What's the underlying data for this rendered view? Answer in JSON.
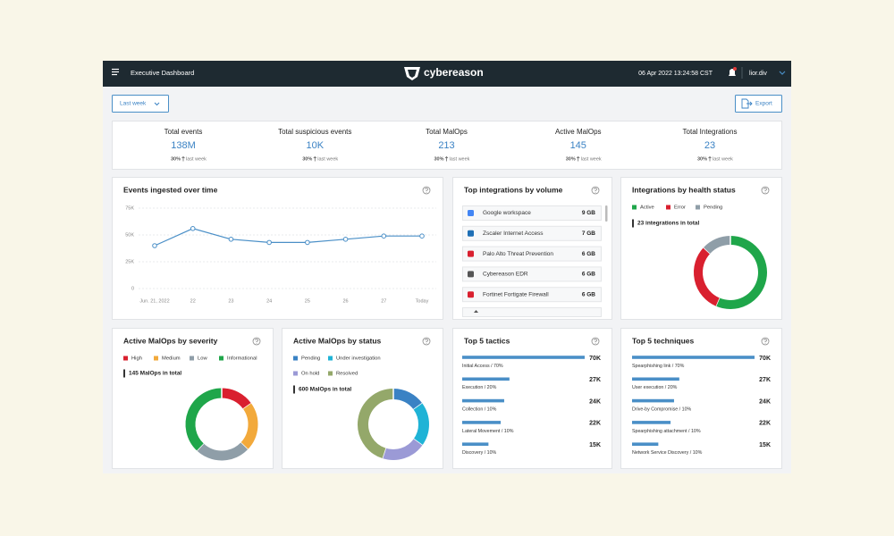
{
  "header": {
    "page_title": "Executive Dashboard",
    "logo": "cybereason",
    "datetime": "06 Apr 2022 13:24:58 CST",
    "user": "lior.div"
  },
  "toolbar": {
    "period": "Last week",
    "export": "Export"
  },
  "kpis": [
    {
      "label": "Total events",
      "value": "138M",
      "change": "30%",
      "change_label": "last week"
    },
    {
      "label": "Total suspicious events",
      "value": "10K",
      "change": "30%",
      "change_label": "last week"
    },
    {
      "label": "Total MalOps",
      "value": "213",
      "change": "30%",
      "change_label": "last week"
    },
    {
      "label": "Active MalOps",
      "value": "145",
      "change": "30%",
      "change_label": "last week"
    },
    {
      "label": "Total Integrations",
      "value": "23",
      "change": "30%",
      "change_label": "last week"
    }
  ],
  "widgets": {
    "events": {
      "title": "Events ingested over time",
      "chart": {
        "type": "line",
        "categories": [
          "Jun. 21, 2022",
          "22",
          "23",
          "24",
          "25",
          "26",
          "27",
          "Today"
        ],
        "values": [
          40000,
          56000,
          46000,
          43000,
          43000,
          46000,
          49000,
          49000
        ],
        "color": "#4a8fc7",
        "ylim": [
          0,
          75000
        ],
        "yticks": [
          0,
          {
            "value": 25000,
            "label": "25K"
          },
          {
            "value": 50000,
            "label": "50K"
          },
          {
            "value": 75000,
            "label": "75K"
          }
        ],
        "grid": true
      }
    },
    "integrations": {
      "title": "Top integrations by volume",
      "items": [
        {
          "name": "Google workspace",
          "volume": "9 GB"
        },
        {
          "name": "Zscaler Internet Access",
          "volume": "7 GB"
        },
        {
          "name": "Palo Alto Threat Prevention",
          "volume": "6 GB"
        },
        {
          "name": "Cybereason EDR",
          "volume": "6 GB"
        },
        {
          "name": "Fortinet Fortigate Firewall",
          "volume": "6 GB"
        }
      ]
    },
    "health": {
      "title": "Integrations by health status",
      "total_label": "23 integrations in total",
      "chart": {
        "type": "donut",
        "categories": [
          "Active",
          "Error",
          "Pending"
        ],
        "values": [
          13,
          7,
          3
        ],
        "colors": [
          "#1fa64a",
          "#d9202f",
          "#8f9ea8"
        ]
      }
    },
    "severity": {
      "title": "Active MalOps by severity",
      "total_label": "145 MalOps in total",
      "chart": {
        "type": "donut",
        "categories": [
          "High",
          "Medium",
          "Low",
          "Informational"
        ],
        "values": [
          22,
          32,
          36,
          55
        ],
        "colors": [
          "#d9202f",
          "#f2a93b",
          "#8f9ea8",
          "#1fa64a"
        ]
      }
    },
    "status": {
      "title": "Active MalOps by status",
      "total_label": "600 MalOps in total",
      "chart": {
        "type": "donut",
        "categories": [
          "Pending",
          "Under investigation",
          "On hold",
          "Resolved"
        ],
        "values": [
          90,
          120,
          120,
          270
        ],
        "colors": [
          "#3a82c4",
          "#1fb3d6",
          "#9b9ad6",
          "#94a86a"
        ]
      }
    },
    "tactics": {
      "title": "Top 5 tactics",
      "chart": {
        "type": "hbar",
        "color": "#4a8fc7",
        "categories": [
          "Initial Access / 70%",
          "Execution / 20%",
          "Collection / 10%",
          "Lateral Movement / 10%",
          "Discovery / 10%"
        ],
        "values": [
          70000,
          27000,
          24000,
          22000,
          15000
        ],
        "value_labels": [
          "70K",
          "27K",
          "24K",
          "22K",
          "15K"
        ]
      }
    },
    "techniques": {
      "title": "Top 5 techniques",
      "chart": {
        "type": "hbar",
        "color": "#4a8fc7",
        "categories": [
          "Spearphishing link / 70%",
          "User execution / 20%",
          "Drive-by Compromise / 10%",
          "Spearphishing attachment / 10%",
          "Network Service Discovery / 10%"
        ],
        "values": [
          70000,
          27000,
          24000,
          22000,
          15000
        ],
        "value_labels": [
          "70K",
          "27K",
          "24K",
          "22K",
          "15K"
        ]
      }
    }
  }
}
